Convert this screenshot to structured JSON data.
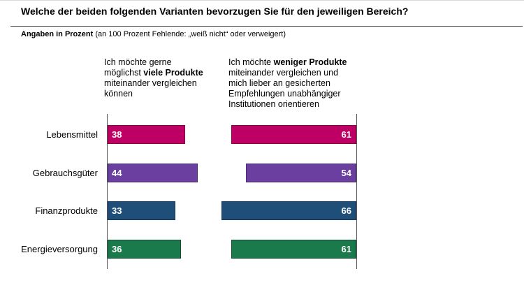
{
  "page": {
    "title": "Welche der beiden folgenden Varianten bevorzugen Sie für den jeweiligen Bereich?",
    "subtitle_bold": "Angaben in Prozent",
    "subtitle_rest": " (an 100 Prozent Fehlende: „weiß nicht“ oder verweigert)"
  },
  "chart_data": {
    "type": "bar",
    "orientation": "horizontal",
    "unit": "percent",
    "axis_max": 100,
    "gridlines": false,
    "value_label_color": "#ffffff",
    "categories": [
      "Lebensmittel",
      "Gebrauchsgüter",
      "Finanzprodukte",
      "Energieversorgung"
    ],
    "category_ids": [
      "lebensmittel",
      "gebrauchsgueter",
      "finanzprodukte",
      "energieversorgung"
    ],
    "row_colors": [
      "#BE0064",
      "#6B3FA0",
      "#1F4E79",
      "#1A7A4B"
    ],
    "row_border_colors": [
      "#8C004A",
      "#4C2B75",
      "#16355B",
      "#0D5130"
    ],
    "series": [
      {
        "name": "Ich möchte gerne möglichst viele Produkte miteinander vergleichen können",
        "header": {
          "pre": "Ich möchte gerne möglichst ",
          "bold": "viele Produkte",
          "post": " miteinander vergleichen können"
        },
        "values": [
          38,
          44,
          33,
          36
        ],
        "bar_alignment": "left"
      },
      {
        "name": "Ich möchte weniger Produkte miteinander vergleichen und mich lieber an gesicherten Empfehlungen unabhängiger Institutionen orientieren",
        "header": {
          "pre": "Ich möchte ",
          "bold": "weniger Produkte",
          "post": " miteinander vergleichen und mich lieber an gesicherten Empfehlungen unabhängiger Institutionen orientieren"
        },
        "values": [
          61,
          54,
          66,
          61
        ],
        "bar_alignment": "right"
      }
    ]
  }
}
